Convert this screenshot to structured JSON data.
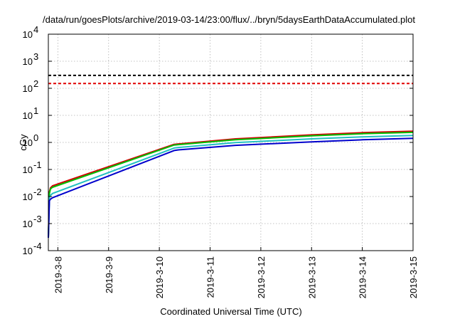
{
  "chart_data": {
    "type": "line",
    "title": "/data/run/goesPlots/archive/2019-03-14/23:00/flux/../bryn/5daysEarthDataAccumulated.plot",
    "xlabel": "Coordinated Universal Time (UTC)",
    "ylabel": "cGy",
    "y_scale": "log",
    "ylim": [
      0.0001,
      10000
    ],
    "xlim": [
      "2019-03-07T19:30",
      "2019-03-15T00:00"
    ],
    "grid": true,
    "legend": "none",
    "x_ticks": [
      "2019-3-8",
      "2019-3-9",
      "2019-3-10",
      "2019-3-11",
      "2019-3-12",
      "2019-3-13",
      "2019-3-14",
      "2019-3-15"
    ],
    "y_ticks": [
      {
        "base": "10",
        "exp": "-4",
        "value": 0.0001
      },
      {
        "base": "10",
        "exp": "-3",
        "value": 0.001
      },
      {
        "base": "10",
        "exp": "-2",
        "value": 0.01
      },
      {
        "base": "10",
        "exp": "-1",
        "value": 0.1
      },
      {
        "base": "10",
        "exp": "0",
        "value": 1
      },
      {
        "base": "10",
        "exp": "1",
        "value": 10
      },
      {
        "base": "10",
        "exp": "2",
        "value": 100
      },
      {
        "base": "10",
        "exp": "3",
        "value": 1000
      },
      {
        "base": "10",
        "exp": "4",
        "value": 10000
      }
    ],
    "thresholds": [
      {
        "value": 300,
        "color": "#000000",
        "style": "dashed"
      },
      {
        "value": 150,
        "color": "#e00000",
        "style": "dashed"
      }
    ],
    "series": [
      {
        "color": "#d40000",
        "x": [
          "2019-03-07T19:30",
          "2019-03-07T20:00",
          "2019-03-07T20:30",
          "2019-03-07T21:30",
          "2019-03-10T07:00",
          "2019-03-10T09:00",
          "2019-03-11T12:00",
          "2019-03-13T00:00",
          "2019-03-14T00:00",
          "2019-03-15T00:00"
        ],
        "y": [
          0.0003,
          0.015,
          0.021,
          0.025,
          0.85,
          0.88,
          1.35,
          1.9,
          2.3,
          2.6
        ]
      },
      {
        "color": "#00c000",
        "x": [
          "2019-03-07T19:30",
          "2019-03-07T20:00",
          "2019-03-07T20:30",
          "2019-03-07T21:30",
          "2019-03-10T07:00",
          "2019-03-10T09:00",
          "2019-03-11T12:00",
          "2019-03-13T00:00",
          "2019-03-14T00:00",
          "2019-03-15T00:00"
        ],
        "y": [
          0.0003,
          0.013,
          0.019,
          0.022,
          0.8,
          0.83,
          1.25,
          1.75,
          2.1,
          2.35
        ]
      },
      {
        "color": "#20c0c0",
        "x": [
          "2019-03-07T19:30",
          "2019-03-07T20:00",
          "2019-03-07T20:30",
          "2019-03-07T21:30",
          "2019-03-10T07:00",
          "2019-03-10T09:00",
          "2019-03-11T12:00",
          "2019-03-13T00:00",
          "2019-03-14T00:00",
          "2019-03-15T00:00"
        ],
        "y": [
          0.0003,
          0.009,
          0.011,
          0.013,
          0.62,
          0.65,
          0.98,
          1.35,
          1.6,
          1.8
        ]
      },
      {
        "color": "#0000cc",
        "x": [
          "2019-03-07T19:30",
          "2019-03-07T20:00",
          "2019-03-07T20:30",
          "2019-03-07T21:30",
          "2019-03-10T07:00",
          "2019-03-10T09:00",
          "2019-03-11T12:00",
          "2019-03-13T00:00",
          "2019-03-14T00:00",
          "2019-03-15T00:00"
        ],
        "y": [
          0.0003,
          0.007,
          0.008,
          0.009,
          0.5,
          0.53,
          0.78,
          1.05,
          1.25,
          1.42
        ]
      }
    ]
  }
}
